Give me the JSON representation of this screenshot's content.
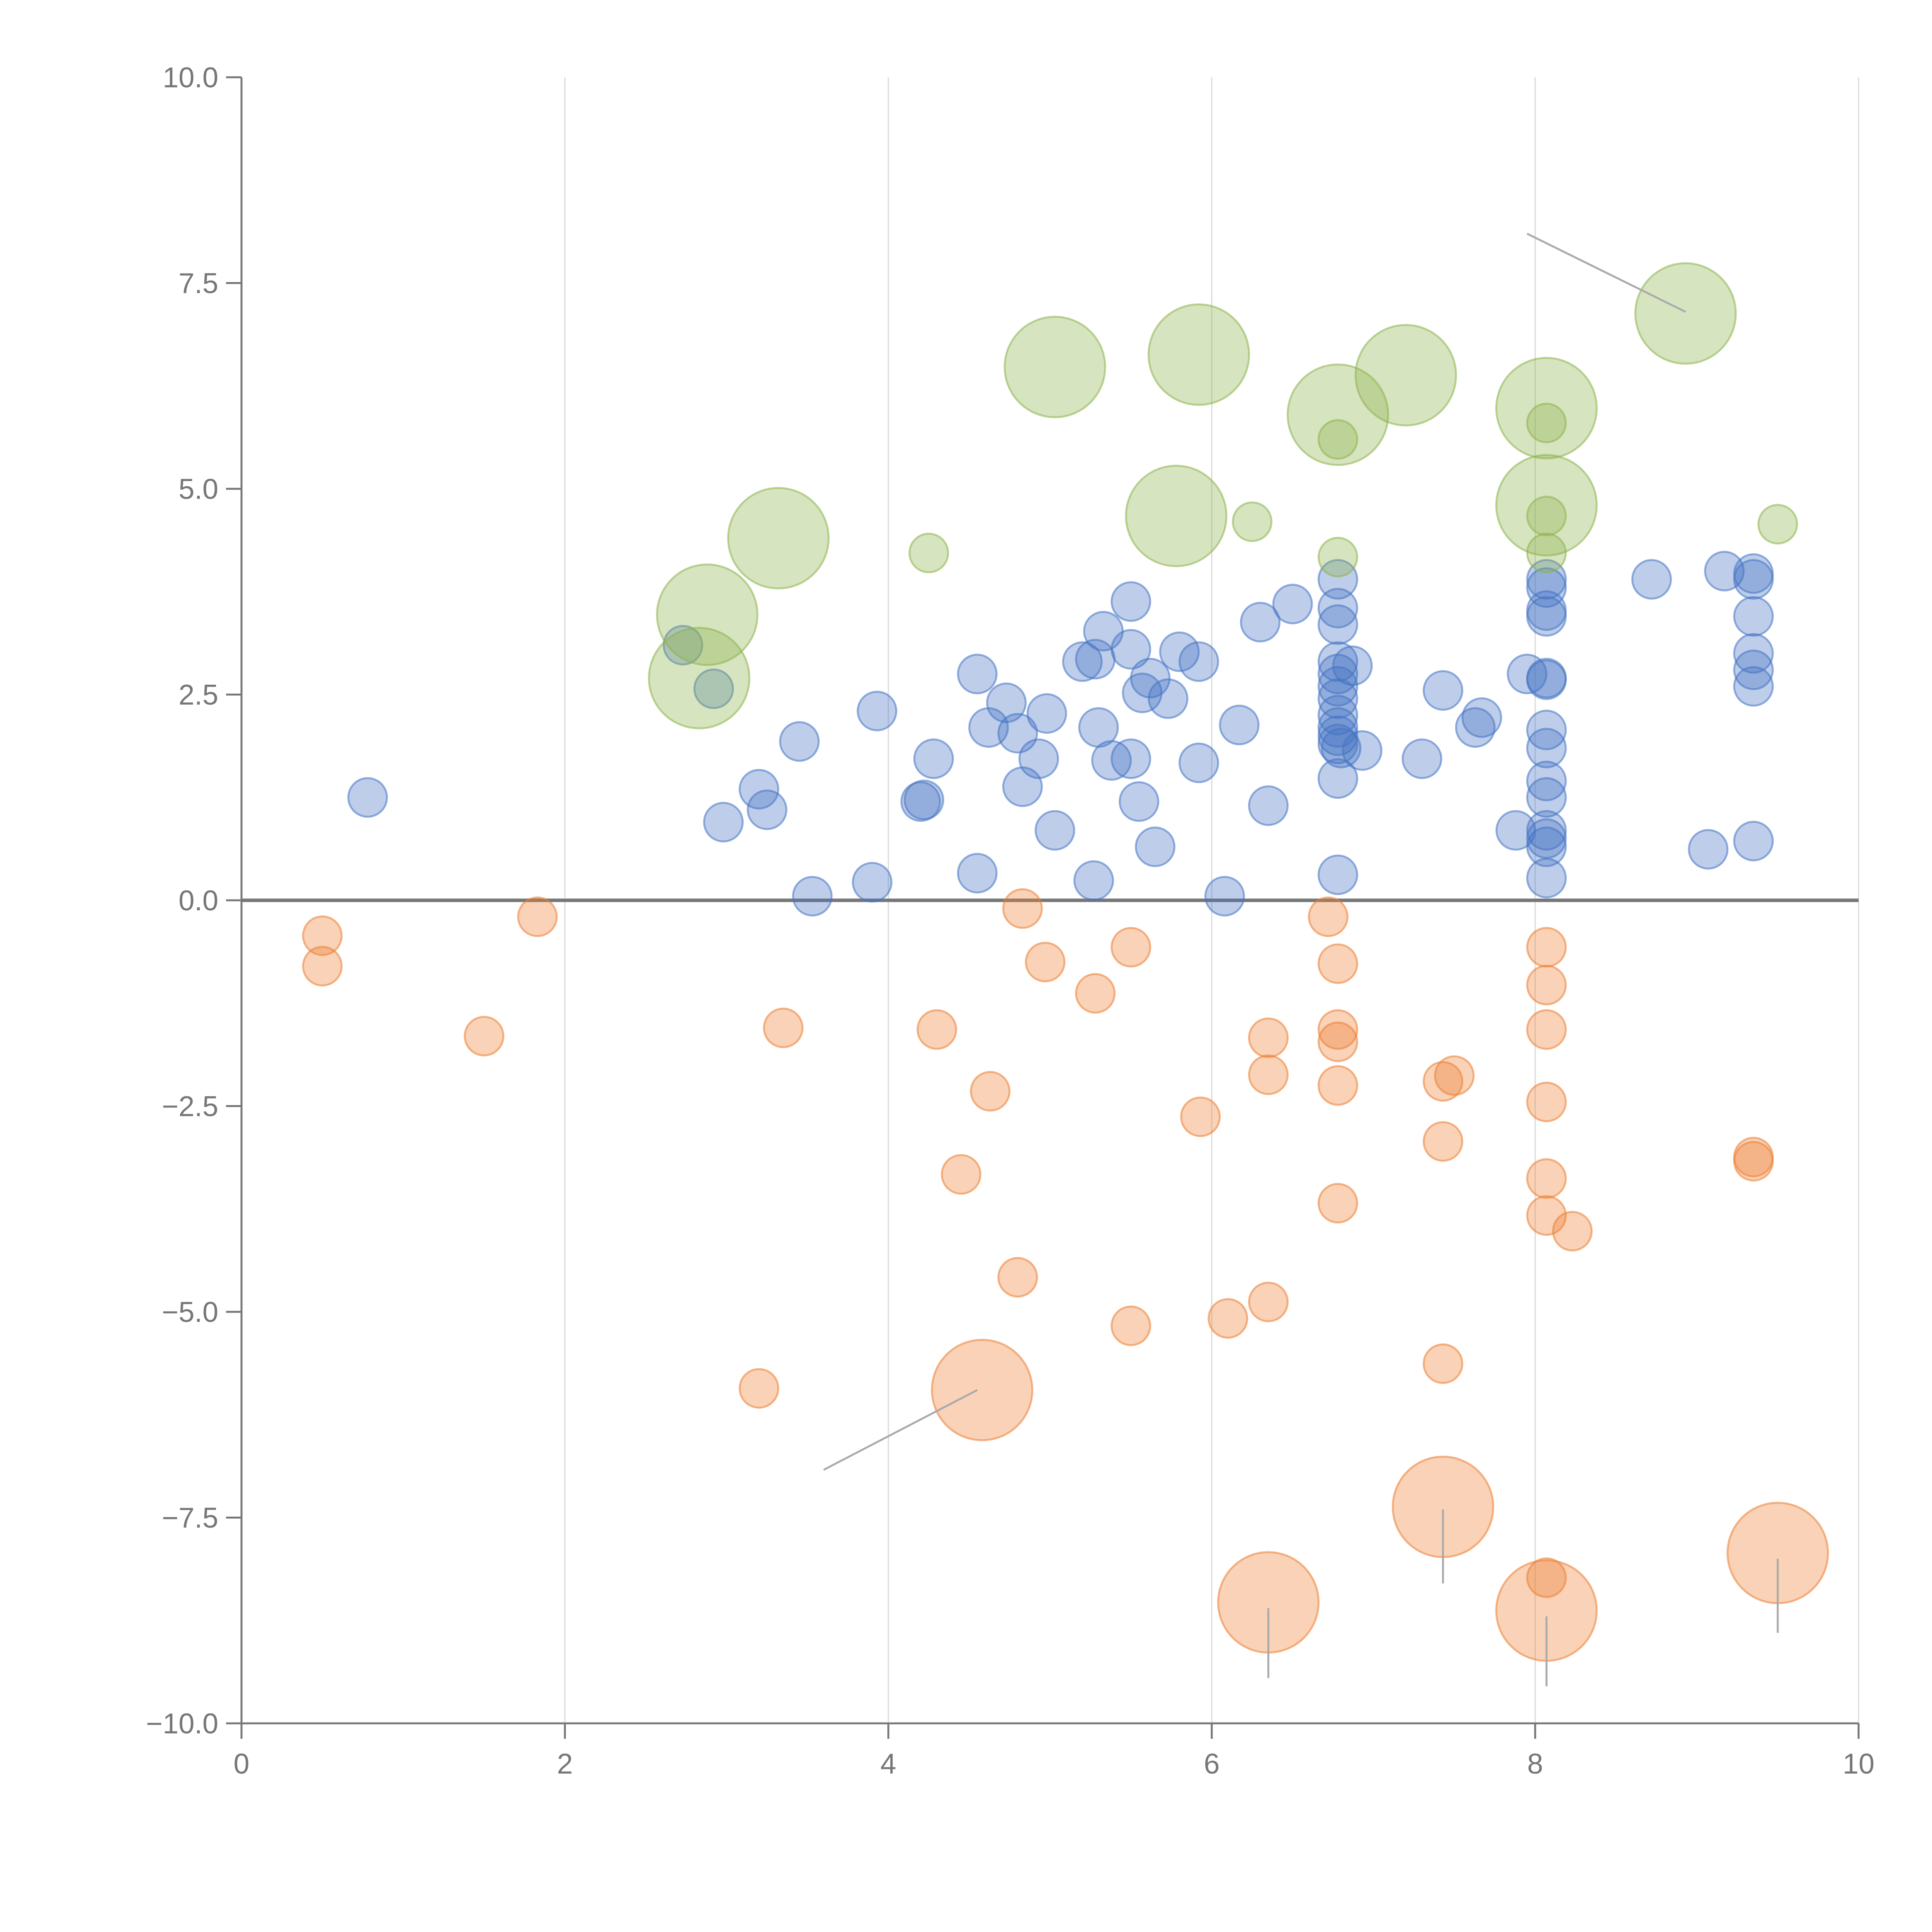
{
  "chart_data": {
    "type": "scatter",
    "title": "",
    "xlabel": "",
    "ylabel": "",
    "xlim": [
      0,
      10
    ],
    "ylim": [
      -10,
      10
    ],
    "x_ticks": [
      "0",
      "2",
      "4",
      "6",
      "8",
      "10"
    ],
    "y_ticks": [
      "10.0",
      "7.5",
      "5.0",
      "2.5",
      "0.0",
      "−2.5",
      "−5.0",
      "−7.5",
      "−10.0"
    ],
    "x_tick_values": [
      0,
      2,
      4,
      6,
      8,
      10
    ],
    "y_tick_values": [
      10,
      7.5,
      5,
      2.5,
      0,
      -2.5,
      -5,
      -7.5,
      -10
    ],
    "grid": "vertical lines at x ticks",
    "reference_line_y": 0,
    "colors": {
      "blue": "#4472c4",
      "orange": "#ed7d31",
      "green": "#8db34a",
      "axis": "#777777",
      "grid": "#d9d9d9",
      "leader": "#aaaaaa"
    },
    "series": [
      {
        "name": "blue",
        "color": "#4472c4",
        "points": [
          {
            "x": 0.78,
            "y": 1.25,
            "s": 1
          },
          {
            "x": 2.73,
            "y": 3.1,
            "s": 1
          },
          {
            "x": 2.92,
            "y": 2.57,
            "s": 1
          },
          {
            "x": 2.98,
            "y": 0.95,
            "s": 1
          },
          {
            "x": 3.2,
            "y": 1.35,
            "s": 1
          },
          {
            "x": 3.25,
            "y": 1.1,
            "s": 1
          },
          {
            "x": 3.45,
            "y": 1.93,
            "s": 1
          },
          {
            "x": 3.53,
            "y": 0.05,
            "s": 1
          },
          {
            "x": 3.9,
            "y": 0.22,
            "s": 1
          },
          {
            "x": 3.93,
            "y": 2.3,
            "s": 1
          },
          {
            "x": 4.2,
            "y": 1.2,
            "s": 1
          },
          {
            "x": 4.22,
            "y": 1.22,
            "s": 1
          },
          {
            "x": 4.28,
            "y": 1.72,
            "s": 1
          },
          {
            "x": 4.55,
            "y": 0.33,
            "s": 1
          },
          {
            "x": 4.55,
            "y": 2.75,
            "s": 1
          },
          {
            "x": 4.62,
            "y": 2.1,
            "s": 1
          },
          {
            "x": 4.73,
            "y": 2.4,
            "s": 1
          },
          {
            "x": 4.8,
            "y": 2.03,
            "s": 1
          },
          {
            "x": 4.83,
            "y": 1.38,
            "s": 1
          },
          {
            "x": 4.93,
            "y": 1.72,
            "s": 1
          },
          {
            "x": 4.98,
            "y": 2.27,
            "s": 1
          },
          {
            "x": 5.03,
            "y": 0.85,
            "s": 1
          },
          {
            "x": 5.2,
            "y": 2.9,
            "s": 1
          },
          {
            "x": 5.27,
            "y": 0.24,
            "s": 1
          },
          {
            "x": 5.28,
            "y": 2.93,
            "s": 1
          },
          {
            "x": 5.3,
            "y": 2.1,
            "s": 1
          },
          {
            "x": 5.33,
            "y": 3.27,
            "s": 1
          },
          {
            "x": 5.38,
            "y": 1.7,
            "s": 1
          },
          {
            "x": 5.5,
            "y": 3.63,
            "s": 1
          },
          {
            "x": 5.5,
            "y": 3.05,
            "s": 1
          },
          {
            "x": 5.5,
            "y": 1.72,
            "s": 1
          },
          {
            "x": 5.55,
            "y": 1.2,
            "s": 1
          },
          {
            "x": 5.57,
            "y": 2.52,
            "s": 1
          },
          {
            "x": 5.62,
            "y": 2.7,
            "s": 1
          },
          {
            "x": 5.65,
            "y": 0.65,
            "s": 1
          },
          {
            "x": 5.73,
            "y": 2.45,
            "s": 1
          },
          {
            "x": 5.8,
            "y": 3.02,
            "s": 1
          },
          {
            "x": 5.92,
            "y": 1.67,
            "s": 1
          },
          {
            "x": 5.92,
            "y": 2.9,
            "s": 1
          },
          {
            "x": 6.08,
            "y": 0.05,
            "s": 1
          },
          {
            "x": 6.17,
            "y": 2.13,
            "s": 1
          },
          {
            "x": 6.3,
            "y": 3.38,
            "s": 1
          },
          {
            "x": 6.35,
            "y": 1.15,
            "s": 1
          },
          {
            "x": 6.5,
            "y": 3.6,
            "s": 1
          },
          {
            "x": 6.78,
            "y": 3.9,
            "s": 1
          },
          {
            "x": 6.78,
            "y": 3.55,
            "s": 1
          },
          {
            "x": 6.78,
            "y": 3.35,
            "s": 1
          },
          {
            "x": 6.78,
            "y": 2.9,
            "s": 1
          },
          {
            "x": 6.78,
            "y": 2.75,
            "s": 1
          },
          {
            "x": 6.78,
            "y": 2.6,
            "s": 1
          },
          {
            "x": 6.78,
            "y": 2.45,
            "s": 1
          },
          {
            "x": 6.78,
            "y": 2.25,
            "s": 1
          },
          {
            "x": 6.78,
            "y": 2.1,
            "s": 1
          },
          {
            "x": 6.78,
            "y": 2.0,
            "s": 1
          },
          {
            "x": 6.78,
            "y": 1.9,
            "s": 1
          },
          {
            "x": 6.78,
            "y": 1.48,
            "s": 1
          },
          {
            "x": 6.78,
            "y": 0.31,
            "s": 1
          },
          {
            "x": 6.8,
            "y": 1.85,
            "s": 1
          },
          {
            "x": 6.87,
            "y": 2.85,
            "s": 1
          },
          {
            "x": 6.93,
            "y": 1.82,
            "s": 1
          },
          {
            "x": 7.3,
            "y": 1.72,
            "s": 1
          },
          {
            "x": 7.43,
            "y": 2.55,
            "s": 1
          },
          {
            "x": 7.63,
            "y": 2.1,
            "s": 1
          },
          {
            "x": 7.67,
            "y": 2.22,
            "s": 1
          },
          {
            "x": 7.88,
            "y": 0.85,
            "s": 1
          },
          {
            "x": 7.95,
            "y": 2.75,
            "s": 1
          },
          {
            "x": 8.07,
            "y": 3.9,
            "s": 1
          },
          {
            "x": 8.07,
            "y": 3.8,
            "s": 1
          },
          {
            "x": 8.07,
            "y": 3.52,
            "s": 1
          },
          {
            "x": 8.07,
            "y": 3.45,
            "s": 1
          },
          {
            "x": 8.07,
            "y": 2.7,
            "s": 1
          },
          {
            "x": 8.07,
            "y": 2.68,
            "s": 1
          },
          {
            "x": 8.07,
            "y": 2.07,
            "s": 1
          },
          {
            "x": 8.07,
            "y": 1.85,
            "s": 1
          },
          {
            "x": 8.07,
            "y": 1.45,
            "s": 1
          },
          {
            "x": 8.07,
            "y": 1.25,
            "s": 1
          },
          {
            "x": 8.07,
            "y": 0.85,
            "s": 1
          },
          {
            "x": 8.07,
            "y": 0.75,
            "s": 1
          },
          {
            "x": 8.07,
            "y": 0.65,
            "s": 1
          },
          {
            "x": 8.07,
            "y": 0.27,
            "s": 1
          },
          {
            "x": 8.72,
            "y": 3.9,
            "s": 1
          },
          {
            "x": 9.07,
            "y": 0.62,
            "s": 1
          },
          {
            "x": 9.17,
            "y": 4.0,
            "s": 1
          },
          {
            "x": 9.35,
            "y": 3.97,
            "s": 1
          },
          {
            "x": 9.35,
            "y": 3.9,
            "s": 1
          },
          {
            "x": 9.35,
            "y": 3.45,
            "s": 1
          },
          {
            "x": 9.35,
            "y": 3.0,
            "s": 1
          },
          {
            "x": 9.35,
            "y": 2.8,
            "s": 1
          },
          {
            "x": 9.35,
            "y": 2.6,
            "s": 1
          },
          {
            "x": 9.35,
            "y": 0.72,
            "s": 1
          }
        ]
      },
      {
        "name": "orange",
        "color": "#ed7d31",
        "points": [
          {
            "x": 0.5,
            "y": -0.43,
            "s": 1
          },
          {
            "x": 0.5,
            "y": -0.8,
            "s": 1
          },
          {
            "x": 1.5,
            "y": -1.65,
            "s": 1
          },
          {
            "x": 1.83,
            "y": -0.2,
            "s": 1
          },
          {
            "x": 3.2,
            "y": -5.93,
            "s": 1
          },
          {
            "x": 3.35,
            "y": -1.55,
            "s": 1
          },
          {
            "x": 4.3,
            "y": -1.57,
            "s": 1
          },
          {
            "x": 4.45,
            "y": -3.33,
            "s": 1
          },
          {
            "x": 4.58,
            "y": -5.95,
            "s": 2.6
          },
          {
            "x": 4.63,
            "y": -2.32,
            "s": 1
          },
          {
            "x": 4.8,
            "y": -4.58,
            "s": 1
          },
          {
            "x": 4.83,
            "y": -0.1,
            "s": 1
          },
          {
            "x": 4.97,
            "y": -0.75,
            "s": 1
          },
          {
            "x": 5.28,
            "y": -1.13,
            "s": 1
          },
          {
            "x": 5.5,
            "y": -0.57,
            "s": 1
          },
          {
            "x": 5.5,
            "y": -5.17,
            "s": 1
          },
          {
            "x": 5.93,
            "y": -2.63,
            "s": 1
          },
          {
            "x": 6.1,
            "y": -5.08,
            "s": 1
          },
          {
            "x": 6.35,
            "y": -1.67,
            "s": 1
          },
          {
            "x": 6.35,
            "y": -2.12,
            "s": 1
          },
          {
            "x": 6.35,
            "y": -4.88,
            "s": 1
          },
          {
            "x": 6.35,
            "y": -8.53,
            "s": 2.6
          },
          {
            "x": 6.72,
            "y": -0.2,
            "s": 1
          },
          {
            "x": 6.78,
            "y": -0.77,
            "s": 1
          },
          {
            "x": 6.78,
            "y": -1.57,
            "s": 1
          },
          {
            "x": 6.78,
            "y": -1.72,
            "s": 1
          },
          {
            "x": 6.78,
            "y": -2.25,
            "s": 1
          },
          {
            "x": 6.78,
            "y": -3.68,
            "s": 1
          },
          {
            "x": 7.43,
            "y": -2.2,
            "s": 1
          },
          {
            "x": 7.43,
            "y": -2.93,
            "s": 1
          },
          {
            "x": 7.43,
            "y": -5.63,
            "s": 1
          },
          {
            "x": 7.43,
            "y": -7.37,
            "s": 2.6
          },
          {
            "x": 7.5,
            "y": -2.13,
            "s": 1
          },
          {
            "x": 8.07,
            "y": -0.57,
            "s": 1
          },
          {
            "x": 8.07,
            "y": -1.03,
            "s": 1
          },
          {
            "x": 8.07,
            "y": -1.57,
            "s": 1
          },
          {
            "x": 8.07,
            "y": -2.45,
            "s": 1
          },
          {
            "x": 8.07,
            "y": -3.38,
            "s": 1
          },
          {
            "x": 8.07,
            "y": -3.83,
            "s": 1
          },
          {
            "x": 8.07,
            "y": -8.23,
            "s": 1
          },
          {
            "x": 8.07,
            "y": -8.63,
            "s": 2.6
          },
          {
            "x": 8.23,
            "y": -4.02,
            "s": 1
          },
          {
            "x": 9.35,
            "y": -3.12,
            "s": 1
          },
          {
            "x": 9.35,
            "y": -3.17,
            "s": 1
          },
          {
            "x": 9.5,
            "y": -7.93,
            "s": 2.6
          }
        ]
      },
      {
        "name": "green",
        "color": "#8db34a",
        "points": [
          {
            "x": 2.83,
            "y": 2.7,
            "s": 2.6
          },
          {
            "x": 2.88,
            "y": 3.47,
            "s": 2.6
          },
          {
            "x": 3.32,
            "y": 4.4,
            "s": 2.6
          },
          {
            "x": 4.25,
            "y": 4.22,
            "s": 1
          },
          {
            "x": 5.03,
            "y": 6.48,
            "s": 2.6
          },
          {
            "x": 5.78,
            "y": 4.67,
            "s": 2.6
          },
          {
            "x": 5.92,
            "y": 6.63,
            "s": 2.6
          },
          {
            "x": 6.25,
            "y": 4.6,
            "s": 1
          },
          {
            "x": 6.78,
            "y": 5.9,
            "s": 2.6
          },
          {
            "x": 6.78,
            "y": 5.6,
            "s": 1
          },
          {
            "x": 6.78,
            "y": 4.17,
            "s": 1
          },
          {
            "x": 7.2,
            "y": 6.38,
            "s": 2.6
          },
          {
            "x": 8.07,
            "y": 5.98,
            "s": 2.6
          },
          {
            "x": 8.07,
            "y": 5.8,
            "s": 1
          },
          {
            "x": 8.07,
            "y": 4.8,
            "s": 2.6
          },
          {
            "x": 8.07,
            "y": 4.67,
            "s": 1
          },
          {
            "x": 8.07,
            "y": 4.22,
            "s": 1
          },
          {
            "x": 8.93,
            "y": 7.13,
            "s": 2.6
          },
          {
            "x": 9.5,
            "y": 4.57,
            "s": 1
          }
        ]
      }
    ],
    "leader_lines": [
      {
        "x1": 7.95,
        "y1": 8.1,
        "x2": 8.93,
        "y2": 7.15
      },
      {
        "x1": 3.6,
        "y1": -6.92,
        "x2": 4.55,
        "y2": -5.95
      },
      {
        "x1": 6.35,
        "y1": -8.6,
        "x2": 6.35,
        "y2": -9.45
      },
      {
        "x1": 7.43,
        "y1": -7.4,
        "x2": 7.43,
        "y2": -8.3
      },
      {
        "x1": 8.07,
        "y1": -8.7,
        "x2": 8.07,
        "y2": -9.55
      },
      {
        "x1": 9.5,
        "y1": -8.0,
        "x2": 9.5,
        "y2": -8.9
      }
    ]
  }
}
